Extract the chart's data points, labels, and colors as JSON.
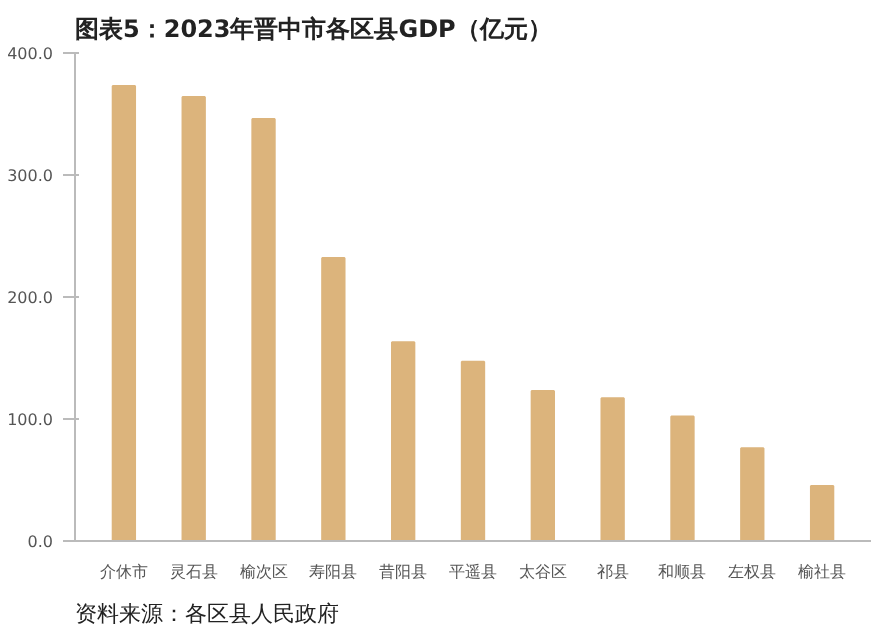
{
  "chart_data": {
    "type": "bar",
    "title": "图表5：2023年晋中市各区县GDP（亿元）",
    "categories": [
      "介休市",
      "灵石县",
      "榆次区",
      "寿阳县",
      "昔阳县",
      "平遥县",
      "太谷区",
      "祁县",
      "和顺县",
      "左权县",
      "榆社县"
    ],
    "values": [
      373,
      364,
      346,
      232,
      163,
      147,
      123,
      117,
      102,
      76,
      45
    ],
    "color": "#dcb47c",
    "ylim": [
      0,
      400
    ],
    "yticks": [
      {
        "value": 0,
        "label": "0.0"
      },
      {
        "value": 100,
        "label": "100.0"
      },
      {
        "value": 200,
        "label": "200.0"
      },
      {
        "value": 300,
        "label": "300.0"
      },
      {
        "value": 400,
        "label": "400.0"
      }
    ],
    "grid": false,
    "annotations": [
      "资料来源：各区县人民政府"
    ]
  }
}
